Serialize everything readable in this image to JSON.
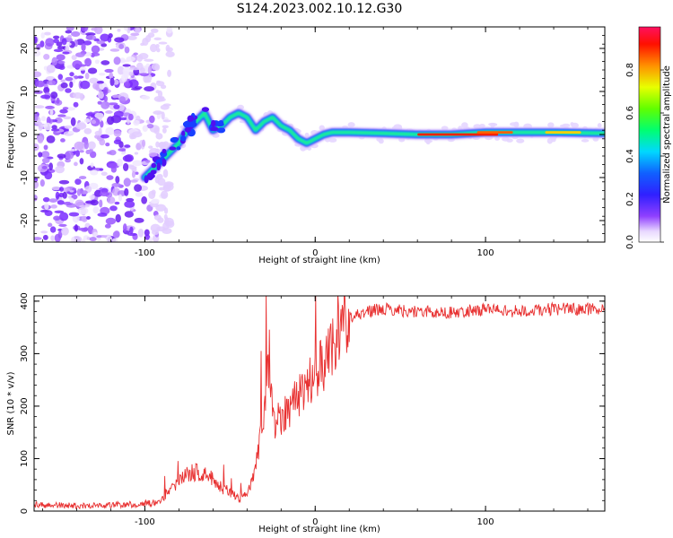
{
  "title": "S124.2023.002.10.12.G30",
  "chart_data": [
    {
      "type": "heatmap",
      "title": "",
      "xlabel": "Height of straight line (km)",
      "ylabel": "Frequency (Hz)",
      "xlim": [
        -165,
        170
      ],
      "ylim": [
        -25,
        25
      ],
      "xticks": [
        -100,
        0,
        100
      ],
      "yticks": [
        -20,
        -10,
        0,
        10,
        20
      ],
      "colorbar": {
        "label": "Normalized spectral amplitude",
        "range": [
          0.0,
          1.0
        ],
        "ticks": [
          0.0,
          0.2,
          0.4,
          0.6,
          0.8
        ]
      },
      "ridge": {
        "x": [
          -100,
          -95,
          -90,
          -85,
          -80,
          -75,
          -70,
          -65,
          -60,
          -55,
          -50,
          -45,
          -40,
          -35,
          -30,
          -25,
          -20,
          -15,
          -10,
          -5,
          0,
          5,
          10,
          20,
          40,
          60,
          80,
          100,
          120,
          140,
          170
        ],
        "y": [
          -10,
          -8,
          -6,
          -4,
          -2,
          1,
          3,
          5,
          1,
          2,
          4,
          5,
          4,
          1,
          3,
          4,
          2,
          1,
          -1,
          -2,
          -1,
          0,
          0.5,
          0.5,
          0.3,
          0,
          0,
          0.5,
          0.5,
          0.5,
          0.3
        ]
      },
      "noise_region_x": [
        -165,
        -95
      ]
    },
    {
      "type": "line",
      "title": "",
      "xlabel": "Height of straight line (km)",
      "ylabel": "SNR (10 * v/v)",
      "xlim": [
        -165,
        170
      ],
      "ylim": [
        0,
        410
      ],
      "xticks": [
        -100,
        0,
        100
      ],
      "yticks": [
        0,
        100,
        200,
        300,
        400
      ],
      "series": [
        {
          "color": "#e83030",
          "x": [
            -165,
            -140,
            -110,
            -95,
            -90,
            -85,
            -80,
            -75,
            -70,
            -65,
            -60,
            -55,
            -50,
            -45,
            -40,
            -35,
            -30,
            -27,
            -25,
            -20,
            -15,
            -10,
            -5,
            0,
            5,
            10,
            15,
            20,
            25,
            30,
            40,
            60,
            80,
            100,
            120,
            140,
            170
          ],
          "y": [
            12,
            10,
            12,
            15,
            25,
            40,
            55,
            70,
            75,
            70,
            60,
            45,
            35,
            25,
            30,
            80,
            180,
            300,
            170,
            180,
            200,
            220,
            240,
            260,
            280,
            320,
            350,
            370,
            375,
            380,
            385,
            380,
            378,
            385,
            380,
            385,
            385
          ]
        }
      ]
    }
  ]
}
